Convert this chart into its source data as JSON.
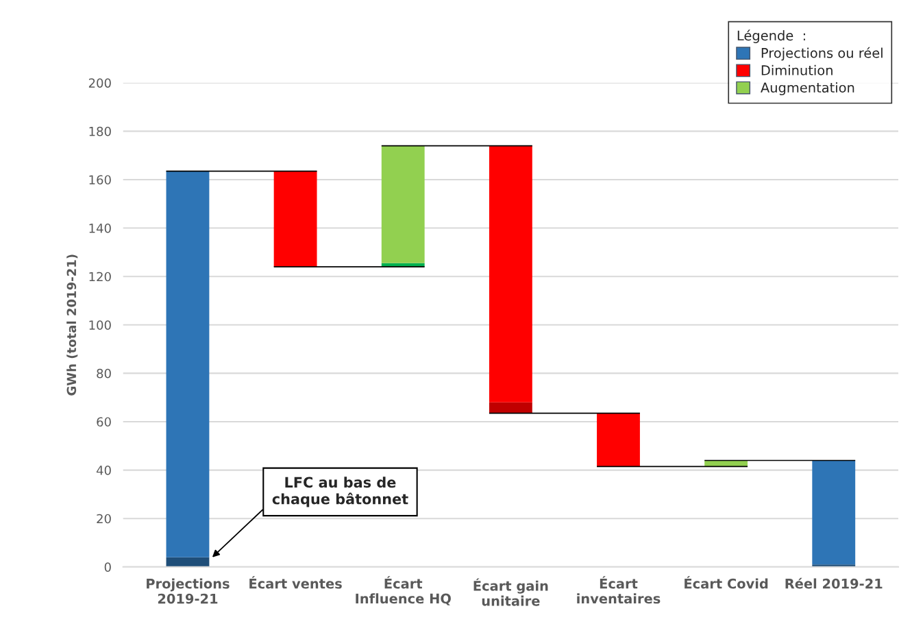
{
  "chart_data": {
    "type": "bar",
    "ylabel": "GWh (total 2019-21)",
    "categories": [
      "Projections 2019-21",
      "Écart ventes",
      "Écart Influence HQ",
      "Écart gain unitaire",
      "Écart inventaires",
      "Écart Covid",
      "Réel 2019-21"
    ],
    "series": [
      {
        "colors": [
          "#1f4e79",
          null,
          "#00b050",
          "#c00000",
          null,
          null,
          "#1f4e79"
        ],
        "base": [
          0,
          null,
          124,
          63.5,
          null,
          null,
          0
        ],
        "values": [
          4,
          null,
          1.5,
          4.5,
          null,
          null,
          1
        ]
      },
      {
        "name": "Projections ou réel",
        "color": "#2e75b6",
        "base": [
          4,
          null,
          null,
          null,
          null,
          null,
          1
        ],
        "values": [
          159.5,
          null,
          null,
          null,
          null,
          null,
          43
        ]
      },
      {
        "name": "Diminution",
        "color": "#ff0000",
        "base": [
          null,
          124,
          null,
          68,
          41.5,
          null,
          null
        ],
        "values": [
          null,
          39.5,
          null,
          106,
          22,
          null,
          null
        ]
      },
      {
        "name": "Augmentation",
        "color": "#92d050",
        "base": [
          null,
          null,
          125.5,
          null,
          null,
          41.5,
          null
        ],
        "values": [
          null,
          null,
          48.5,
          null,
          null,
          2.5,
          null
        ]
      }
    ],
    "ylim": [
      0,
      200
    ],
    "yticks": [
      0,
      20,
      40,
      60,
      80,
      100,
      120,
      140,
      160,
      180,
      200
    ],
    "grid": "y",
    "legend": "top right",
    "legend_title": "Légende  :",
    "annotations": [
      "LFC au bas de\nchaque bâtonnet"
    ]
  }
}
